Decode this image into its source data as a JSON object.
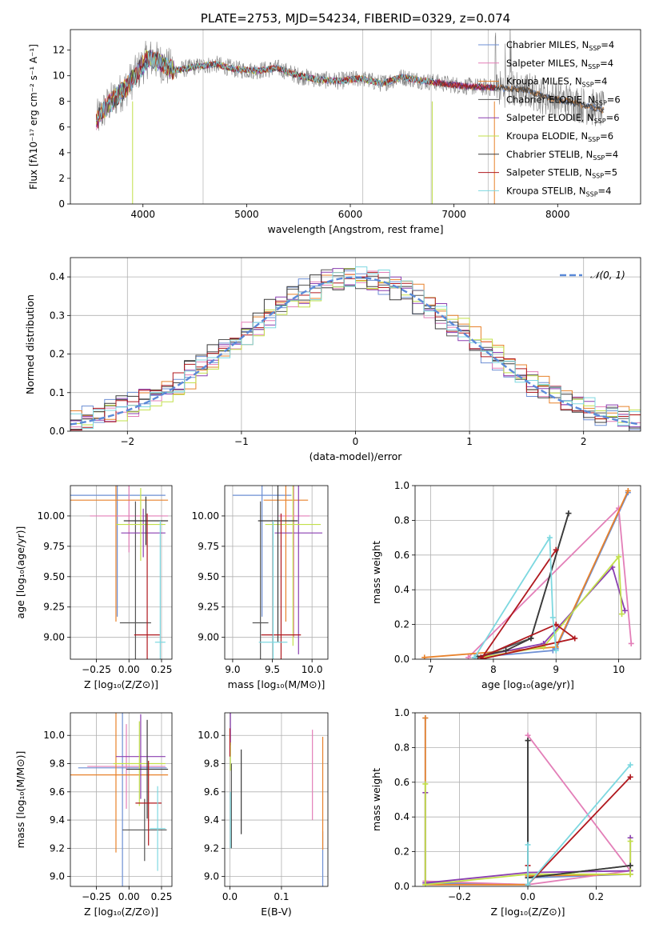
{
  "colors": [
    "#6d8fd4",
    "#e37fb8",
    "#e8822b",
    "#555555",
    "#8a3fb0",
    "#c2e04a",
    "#3a3a3a",
    "#b0181e",
    "#7dd8e0"
  ],
  "chart_data": [
    {
      "id": "spectrum",
      "type": "line",
      "title": "PLATE=2753, MJD=54234, FIBERID=0329, z=0.074",
      "xlabel": "wavelength [Angstrom, rest frame]",
      "ylabel_html": "Flux [fλ10⁻¹⁷ erg cm⁻² s⁻¹ A⁻¹]",
      "xlim": [
        3300,
        8800
      ],
      "ylim": [
        0,
        13.6
      ],
      "xticks": [
        4000,
        5000,
        6000,
        7000,
        8000
      ],
      "yticks": [
        0,
        2,
        4,
        6,
        8,
        10,
        12
      ],
      "legend": [
        {
          "text": "Chabrier MILES, N",
          "sub": "SSP",
          "tail": "=4"
        },
        {
          "text": "Salpeter MILES, N",
          "sub": "SSP",
          "tail": "=4"
        },
        {
          "text": "Kroupa MILES, N",
          "sub": "SSP",
          "tail": "=4"
        },
        {
          "text": "Chabrier ELODIE, N",
          "sub": "SSP",
          "tail": "=6"
        },
        {
          "text": "Salpeter ELODIE, N",
          "sub": "SSP",
          "tail": "=6"
        },
        {
          "text": "Kroupa ELODIE, N",
          "sub": "SSP",
          "tail": "=6"
        },
        {
          "text": "Chabrier STELIB, N",
          "sub": "SSP",
          "tail": "=4"
        },
        {
          "text": "Salpeter STELIB, N",
          "sub": "SSP",
          "tail": "=5"
        },
        {
          "text": "Kroupa STELIB, N",
          "sub": "SSP",
          "tail": "=4"
        }
      ],
      "continuum_points": [
        [
          3550,
          6.5
        ],
        [
          3650,
          7.6
        ],
        [
          3750,
          8.4
        ],
        [
          3850,
          9.2
        ],
        [
          3950,
          10.3
        ],
        [
          4050,
          11.4
        ],
        [
          4150,
          11.1
        ],
        [
          4300,
          10.4
        ],
        [
          4500,
          10.7
        ],
        [
          4700,
          10.9
        ],
        [
          4900,
          10.5
        ],
        [
          5100,
          10.4
        ],
        [
          5300,
          10.6
        ],
        [
          5500,
          10.0
        ],
        [
          5700,
          9.7
        ],
        [
          5900,
          9.6
        ],
        [
          6100,
          9.8
        ],
        [
          6300,
          9.4
        ],
        [
          6500,
          9.9
        ],
        [
          6700,
          9.6
        ],
        [
          6900,
          9.4
        ],
        [
          7100,
          9.2
        ],
        [
          7300,
          9.1
        ],
        [
          7500,
          9.0
        ],
        [
          7700,
          8.9
        ],
        [
          7900,
          8.3
        ],
        [
          8100,
          8.0
        ],
        [
          8300,
          7.6
        ],
        [
          8450,
          7.3
        ]
      ],
      "fit_ranges": [
        [
          3550,
          8450
        ],
        [
          3550,
          7400
        ],
        [
          3550,
          8450
        ],
        [
          3550,
          8450
        ],
        [
          3550,
          7400
        ],
        [
          3550,
          6800
        ],
        [
          3550,
          8450
        ],
        [
          3550,
          7400
        ],
        [
          3550,
          6800
        ]
      ]
    },
    {
      "id": "residuals",
      "type": "histogram",
      "xlabel": "(data-model)/error",
      "ylabel": "Normed distribution",
      "xlim": [
        -2.5,
        2.5
      ],
      "ylim": [
        0,
        0.45
      ],
      "xticks": [
        -2,
        -1,
        0,
        1,
        2
      ],
      "yticks": [
        0.0,
        0.1,
        0.2,
        0.3,
        0.4
      ],
      "gaussian_label": "𝒩(0, 1)",
      "bin_width": 0.1
    },
    {
      "id": "age-vs-Z",
      "type": "errorbar",
      "xlabel": "Z [log₁₀(Z/Z⊙)]",
      "ylabel": "age  [log₁₀(age/yr)]",
      "xlim": [
        -0.45,
        0.33
      ],
      "ylim": [
        8.82,
        10.25
      ],
      "xticks": [
        -0.25,
        0.0,
        0.25
      ],
      "xticklabels": [
        "−0.25",
        "0.00",
        "0.25"
      ],
      "yticks": [
        9.0,
        9.25,
        9.5,
        9.75,
        10.0
      ],
      "yticklabels": [
        "9.00",
        "9.25",
        "9.50",
        "9.75",
        "10.00"
      ],
      "points": [
        {
          "x": -0.09,
          "xe": 0.37,
          "y": 10.17,
          "ye": 1.0
        },
        {
          "x": 0.0,
          "xe": 0.3,
          "y": 10.0,
          "ye": 0.3
        },
        {
          "x": -0.1,
          "xe": 0.4,
          "y": 10.13,
          "ye": 1.0
        },
        {
          "x": 0.05,
          "xe": 0.12,
          "y": 9.12,
          "ye": 1.0
        },
        {
          "x": 0.11,
          "xe": 0.17,
          "y": 9.86,
          "ye": 0.2
        },
        {
          "x": 0.09,
          "xe": 0.19,
          "y": 9.93,
          "ye": 0.3
        },
        {
          "x": 0.13,
          "xe": 0.17,
          "y": 9.96,
          "ye": 0.2
        },
        {
          "x": 0.14,
          "xe": 0.1,
          "y": 9.02,
          "ye": 1.0
        },
        {
          "x": 0.24,
          "xe": 0.04,
          "y": 8.96,
          "ye": 1.0
        }
      ]
    },
    {
      "id": "age-vs-mass",
      "type": "errorbar",
      "xlabel": "mass [log₁₀(M/M⊙)]",
      "ylabel": "",
      "xlim": [
        8.9,
        10.2
      ],
      "ylim": [
        8.82,
        10.25
      ],
      "xticks": [
        9.0,
        9.5,
        10.0
      ],
      "xticklabels": [
        "9.0",
        "9.5",
        "10.0"
      ],
      "yticks": [
        9.0,
        9.25,
        9.5,
        9.75,
        10.0
      ],
      "yticklabels": [
        "9.00",
        "9.25",
        "9.50",
        "9.75",
        "10.00"
      ],
      "points": [
        {
          "x": 9.37,
          "xe": 0.37,
          "y": 10.17,
          "ye": 1.0
        },
        {
          "x": 9.77,
          "xe": 0.2,
          "y": 10.0,
          "ye": 1.0
        },
        {
          "x": 9.67,
          "xe": 0.28,
          "y": 10.13,
          "ye": 1.0
        },
        {
          "x": 9.35,
          "xe": 0.1,
          "y": 9.12,
          "ye": 1.0
        },
        {
          "x": 9.83,
          "xe": 0.3,
          "y": 9.86,
          "ye": 1.0
        },
        {
          "x": 9.76,
          "xe": 0.35,
          "y": 9.93,
          "ye": 1.0
        },
        {
          "x": 9.57,
          "xe": 0.25,
          "y": 9.96,
          "ye": 1.0
        },
        {
          "x": 9.61,
          "xe": 0.25,
          "y": 9.02,
          "ye": 1.0
        },
        {
          "x": 9.51,
          "xe": 0.18,
          "y": 8.96,
          "ye": 1.0
        }
      ]
    },
    {
      "id": "mass-vs-Z",
      "type": "errorbar",
      "xlabel": "Z [log₁₀(Z/Z⊙)]",
      "ylabel": "mass [log₁₀(M/M⊙)]",
      "xlim": [
        -0.45,
        0.33
      ],
      "ylim": [
        8.93,
        10.16
      ],
      "xticks": [
        -0.25,
        0.0,
        0.25
      ],
      "xticklabels": [
        "−0.25",
        "0.00",
        "0.25"
      ],
      "yticks": [
        9.0,
        9.2,
        9.4,
        9.6,
        9.8,
        10.0
      ],
      "yticklabels": [
        "9.0",
        "9.2",
        "9.4",
        "9.6",
        "9.8",
        "10.0"
      ],
      "points": [
        {
          "x": -0.05,
          "xe": 0.34,
          "y": 9.77,
          "ye": 0.85
        },
        {
          "x": -0.02,
          "xe": 0.3,
          "y": 9.78,
          "ye": 0.3
        },
        {
          "x": -0.1,
          "xe": 0.4,
          "y": 9.72,
          "ye": 0.55
        },
        {
          "x": 0.12,
          "xe": 0.17,
          "y": 9.33,
          "ye": 0.22
        },
        {
          "x": 0.09,
          "xe": 0.19,
          "y": 9.85,
          "ye": 0.3
        },
        {
          "x": 0.08,
          "xe": 0.2,
          "y": 9.8,
          "ye": 0.3
        },
        {
          "x": 0.14,
          "xe": 0.16,
          "y": 9.76,
          "ye": 0.35
        },
        {
          "x": 0.15,
          "xe": 0.1,
          "y": 9.52,
          "ye": 0.3
        },
        {
          "x": 0.22,
          "xe": 0.06,
          "y": 9.34,
          "ye": 0.3
        }
      ]
    },
    {
      "id": "mass-vs-ebv",
      "type": "errorbar",
      "xlabel": "E(B-V)",
      "ylabel": "",
      "xlim": [
        -0.01,
        0.19
      ],
      "ylim": [
        8.93,
        10.16
      ],
      "xticks": [
        0.0,
        0.1
      ],
      "xticklabels": [
        "0.0",
        "0.1"
      ],
      "yticks": [
        9.0,
        9.2,
        9.4,
        9.6,
        9.8,
        10.0
      ],
      "yticklabels": [
        "9.0",
        "9.2",
        "9.4",
        "9.6",
        "9.8",
        "10.0"
      ],
      "points": [
        {
          "x": 0.18,
          "xe": 0,
          "y": 9.07,
          "ye": 0.25
        },
        {
          "x": 0.16,
          "xe": 0,
          "y": 9.72,
          "ye": 0.32
        },
        {
          "x": 0.18,
          "xe": 0,
          "y": 9.59,
          "ye": 0.4
        },
        {
          "x": 0.003,
          "xe": 0,
          "y": 9.5,
          "ye": 0.3
        },
        {
          "x": 0.001,
          "xe": 0,
          "y": 10.05,
          "ye": 0.12
        },
        {
          "x": 0.001,
          "xe": 0,
          "y": 9.85,
          "ye": 0.1
        },
        {
          "x": 0.022,
          "xe": 0,
          "y": 9.6,
          "ye": 0.3
        },
        {
          "x": 0.0,
          "xe": 0,
          "y": 9.95,
          "ye": 0.1
        },
        {
          "x": 0.001,
          "xe": 0,
          "y": 9.4,
          "ye": 0.2
        }
      ]
    },
    {
      "id": "weight-vs-age",
      "type": "line",
      "xlabel": "age  [log₁₀(age/yr)]",
      "ylabel": "mass weight",
      "xlim": [
        6.75,
        10.35
      ],
      "ylim": [
        0.0,
        1.0
      ],
      "xticks": [
        7,
        8,
        9,
        10
      ],
      "xticklabels": [
        "7",
        "8",
        "9",
        "10"
      ],
      "yticks": [
        0.0,
        0.2,
        0.4,
        0.6,
        0.8,
        1.0
      ],
      "yticklabels": [
        "0.0",
        "0.2",
        "0.4",
        "0.6",
        "0.8",
        "1.0"
      ],
      "series": [
        {
          "x": [
            7.7,
            8.95,
            9.0,
            10.15
          ],
          "y": [
            0.01,
            0.05,
            0.06,
            0.96
          ]
        },
        {
          "x": [
            7.6,
            10.0,
            10.2
          ],
          "y": [
            0.01,
            0.87,
            0.09
          ]
        },
        {
          "x": [
            6.9,
            9.0,
            10.15
          ],
          "y": [
            0.01,
            0.07,
            0.97
          ]
        },
        {
          "x": [
            7.75,
            8.6,
            9.2
          ],
          "y": [
            0.01,
            0.12,
            0.84
          ]
        },
        {
          "x": [
            7.7,
            8.8,
            9.9,
            10.1
          ],
          "y": [
            0.01,
            0.09,
            0.53,
            0.28
          ]
        },
        {
          "x": [
            7.8,
            8.8,
            10.0,
            10.05
          ],
          "y": [
            0.01,
            0.07,
            0.59,
            0.26
          ]
        },
        {
          "x": [
            7.7,
            8.2,
            8.6,
            9.2
          ],
          "y": [
            0.01,
            0.05,
            0.12,
            0.84
          ]
        },
        {
          "x": [
            7.8,
            9.0,
            9.3,
            7.8,
            9.0
          ],
          "y": [
            0.01,
            0.2,
            0.12,
            0.0,
            0.63
          ]
        },
        {
          "x": [
            7.7,
            8.9,
            8.95,
            9.0
          ],
          "y": [
            0.01,
            0.7,
            0.24,
            0.05
          ]
        }
      ]
    },
    {
      "id": "weight-vs-Z",
      "type": "line",
      "xlabel": "Z [log₁₀(Z/Z⊙)]",
      "ylabel": "mass weight",
      "xlim": [
        -0.33,
        0.33
      ],
      "ylim": [
        0.0,
        1.0
      ],
      "xticks": [
        -0.2,
        0.0,
        0.2
      ],
      "xticklabels": [
        "−0.2",
        "0.0",
        "0.2"
      ],
      "yticks": [
        0.0,
        0.2,
        0.4,
        0.6,
        0.8,
        1.0
      ],
      "yticklabels": [
        "0.0",
        "0.2",
        "0.4",
        "0.6",
        "0.8",
        "1.0"
      ],
      "series": [
        {
          "x": [
            -0.3,
            -0.3,
            0.0,
            0.0,
            0.3
          ],
          "y": [
            0.97,
            0.02,
            0.01,
            0.05,
            0.07
          ]
        },
        {
          "x": [
            -0.3,
            0.0,
            0.3,
            0.0
          ],
          "y": [
            0.03,
            0.01,
            0.09,
            0.87
          ]
        },
        {
          "x": [
            -0.3,
            -0.3,
            0.0,
            0.0,
            0.3
          ],
          "y": [
            0.97,
            0.01,
            0.01,
            0.06,
            0.07
          ]
        },
        {
          "x": [
            0.0,
            0.0,
            0.0,
            0.3
          ],
          "y": [
            0.84,
            0.01,
            0.05,
            0.12
          ]
        },
        {
          "x": [
            -0.3,
            -0.3,
            0.0,
            0.3,
            0.3
          ],
          "y": [
            0.54,
            0.02,
            0.08,
            0.09,
            0.28
          ]
        },
        {
          "x": [
            -0.3,
            -0.3,
            0.0,
            0.3,
            0.3
          ],
          "y": [
            0.59,
            0.01,
            0.07,
            0.07,
            0.26
          ]
        },
        {
          "x": [
            0.0,
            0.0,
            0.0,
            0.3
          ],
          "y": [
            0.84,
            0.01,
            0.05,
            0.12
          ]
        },
        {
          "x": [
            0.0,
            0.0,
            0.3
          ],
          "y": [
            0.12,
            0.01,
            0.63
          ]
        },
        {
          "x": [
            0.0,
            0.0,
            0.3
          ],
          "y": [
            0.24,
            0.01,
            0.7
          ]
        }
      ]
    }
  ]
}
